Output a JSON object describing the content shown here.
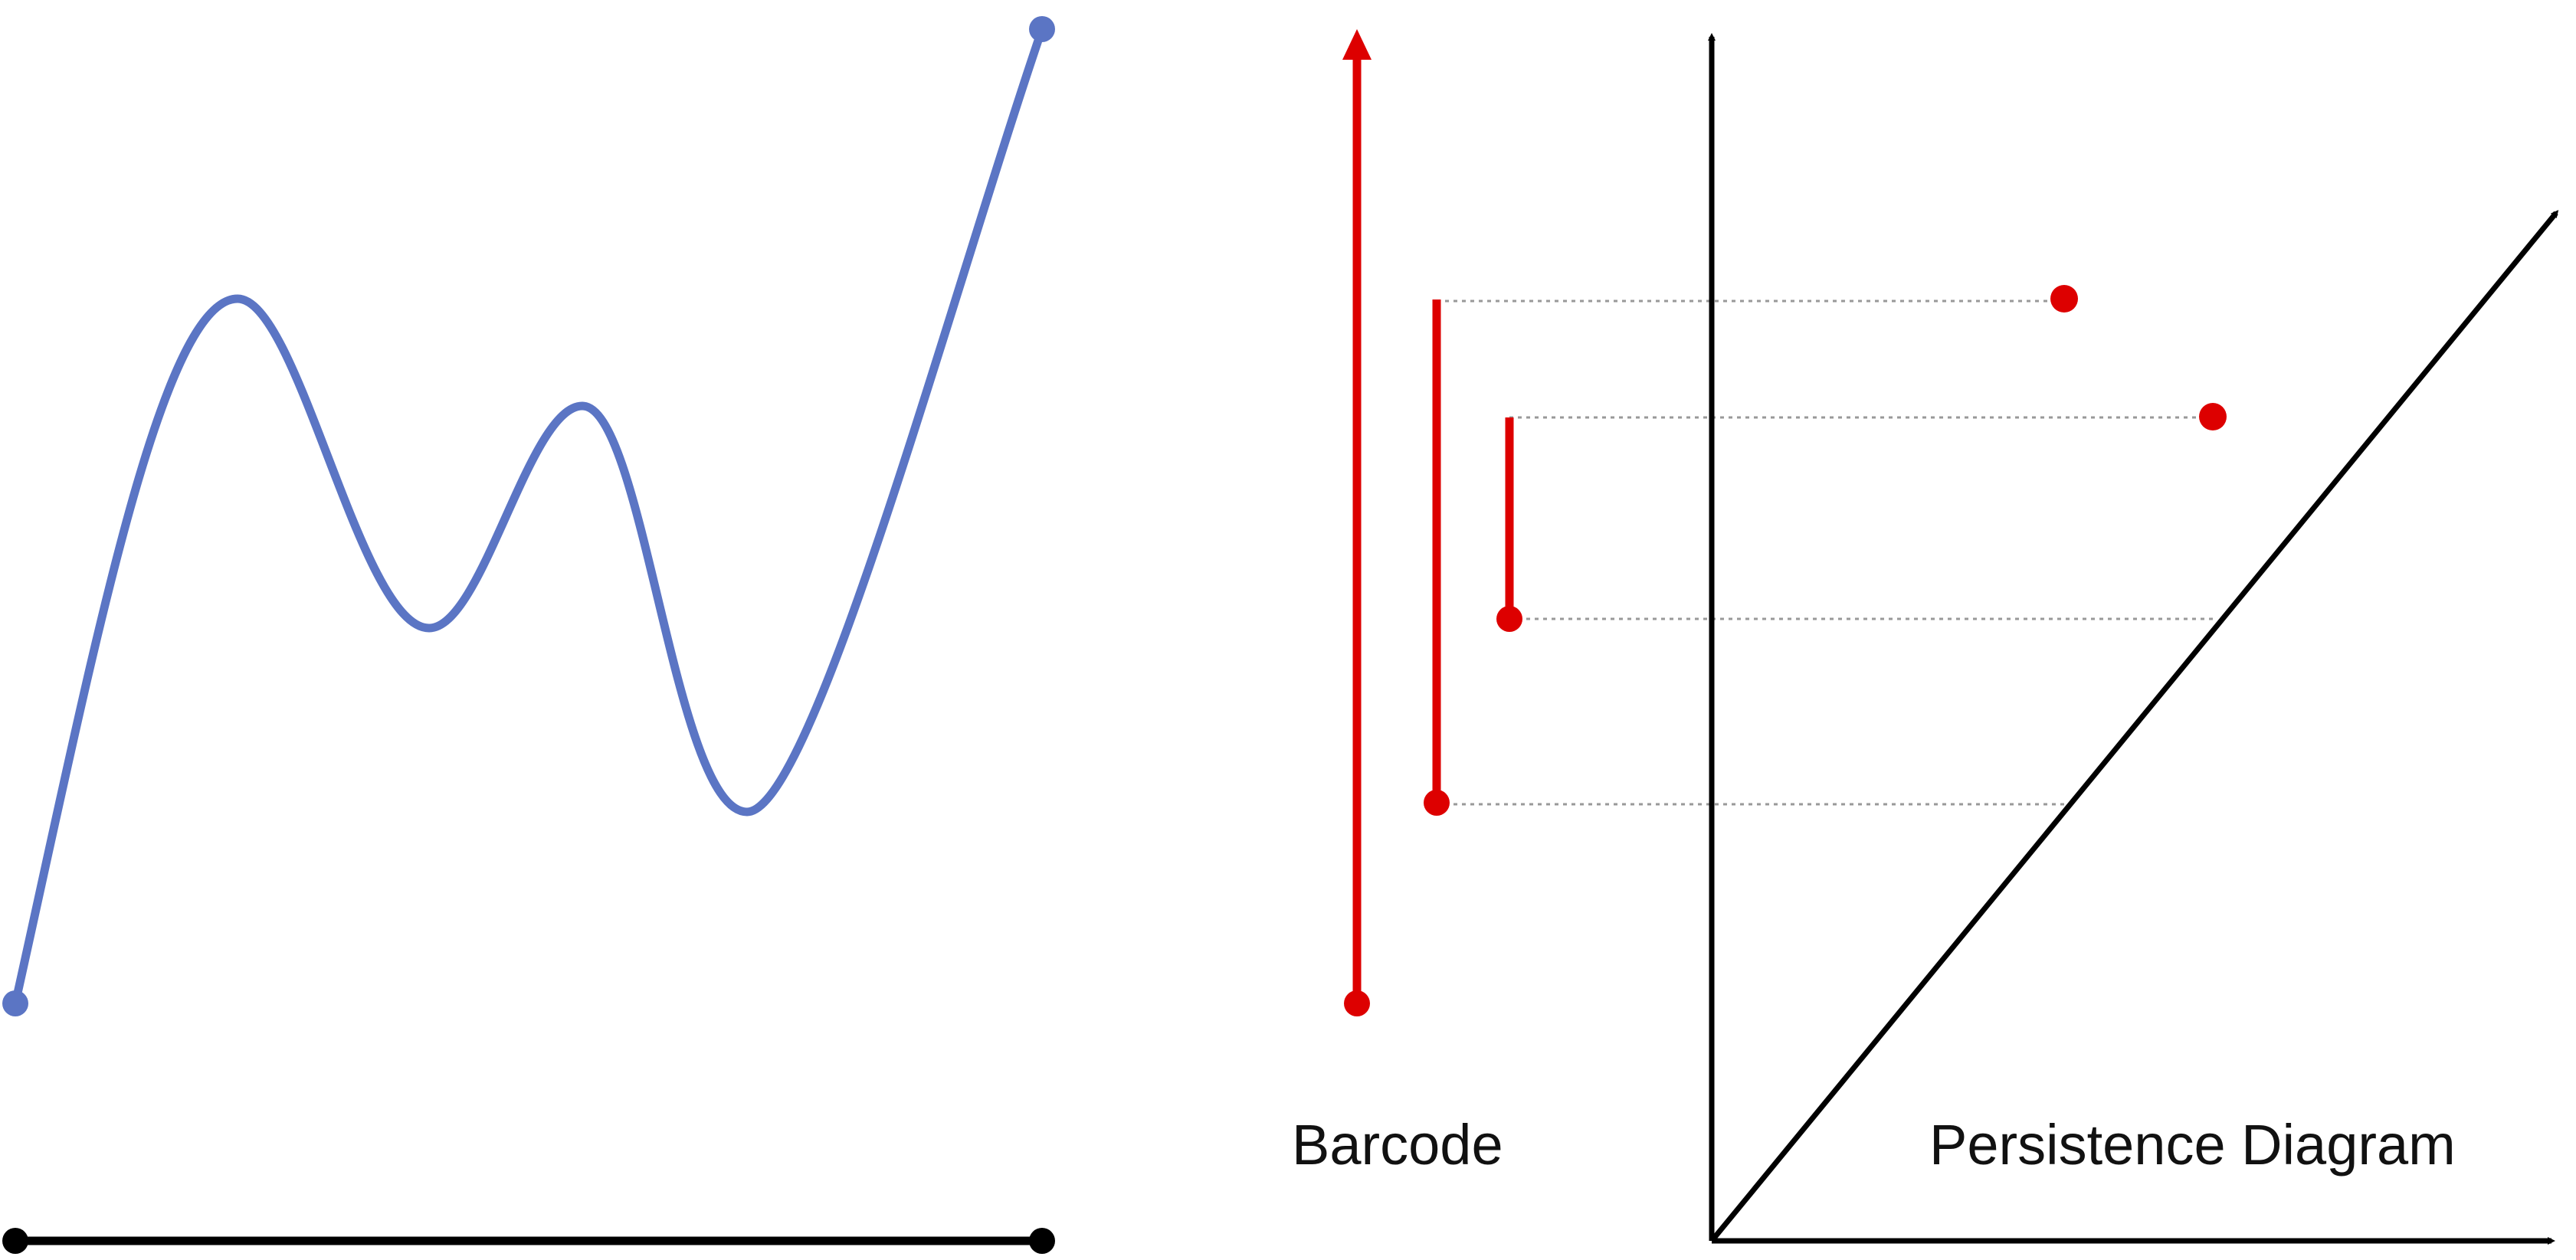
{
  "labels": {
    "barcode": "Barcode",
    "persistence_diagram": "Persistence Diagram"
  },
  "colors": {
    "function_curve": "#5b75c4",
    "barcode": "#dd0000",
    "axes": "#000000",
    "guide_lines": "#999999",
    "background": "#ffffff"
  },
  "diagram": {
    "function_graph": {
      "description_free": true,
      "critical_points": [
        "start-min",
        "max",
        "min",
        "max",
        "min",
        "end"
      ]
    },
    "barcode": {
      "bars": [
        {
          "birth_level": 0,
          "death_level": null,
          "infinite": true
        },
        {
          "birth_level": 1,
          "death_level": 4
        },
        {
          "birth_level": 2,
          "death_level": 3
        }
      ]
    },
    "persistence_diagram": {
      "points": [
        {
          "birth_level": 1,
          "death_level": 4
        },
        {
          "birth_level": 2,
          "death_level": 3
        }
      ]
    }
  }
}
